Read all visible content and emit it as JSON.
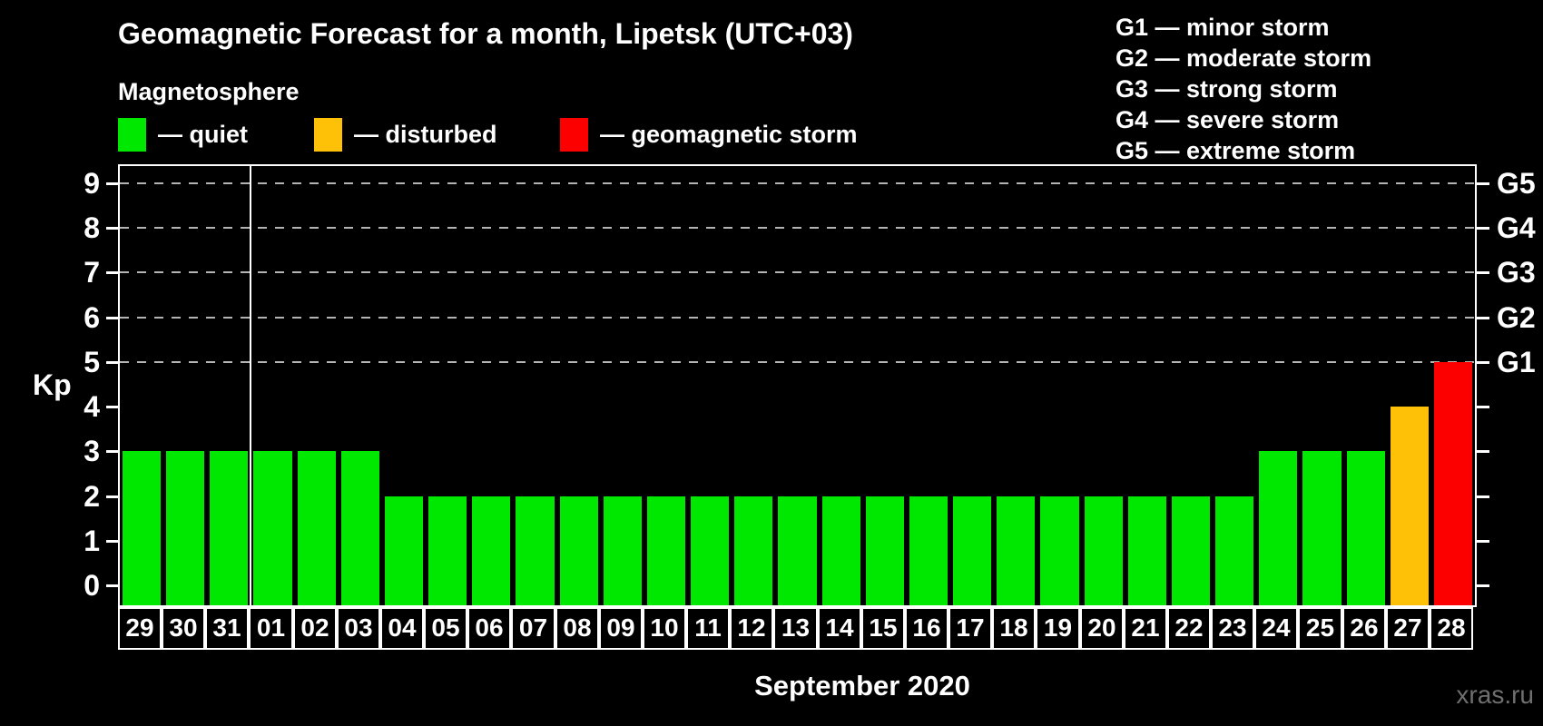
{
  "title": "Geomagnetic Forecast for a month, Lipetsk (UTC+03)",
  "subtitle": "Magnetosphere",
  "legend": {
    "items": [
      {
        "status": "quiet",
        "label": "— quiet",
        "color": "#00E800"
      },
      {
        "status": "disturbed",
        "label": "— disturbed",
        "color": "#FFC107"
      },
      {
        "status": "storm",
        "label": "— geomagnetic storm",
        "color": "#FC0000"
      }
    ]
  },
  "g_legend": [
    {
      "label": "G1 — minor storm"
    },
    {
      "label": "G2 — moderate storm"
    },
    {
      "label": "G3 — strong storm"
    },
    {
      "label": "G4 — severe storm"
    },
    {
      "label": "G5 — extreme storm"
    }
  ],
  "watermark": "xras.ru",
  "chart_data": {
    "type": "bar",
    "title": "Geomagnetic Forecast for a month, Lipetsk (UTC+03)",
    "xlabel": "September 2020",
    "ylabel": "Kp",
    "ylim": [
      0,
      9
    ],
    "yticks": [
      0,
      1,
      2,
      3,
      4,
      5,
      6,
      7,
      8,
      9
    ],
    "grid": "dashed horizontal lines at storm levels only",
    "gridline_levels": [
      5,
      6,
      7,
      8,
      9
    ],
    "right_axis_labels": [
      {
        "kp": 5,
        "label": "G1"
      },
      {
        "kp": 6,
        "label": "G2"
      },
      {
        "kp": 7,
        "label": "G3"
      },
      {
        "kp": 8,
        "label": "G4"
      },
      {
        "kp": 9,
        "label": "G5"
      }
    ],
    "month_separator_before_index": 3,
    "categories": [
      "29",
      "30",
      "31",
      "01",
      "02",
      "03",
      "04",
      "05",
      "06",
      "07",
      "08",
      "09",
      "10",
      "11",
      "12",
      "13",
      "14",
      "15",
      "16",
      "17",
      "18",
      "19",
      "20",
      "21",
      "22",
      "23",
      "24",
      "25",
      "26",
      "27",
      "28"
    ],
    "values": [
      3,
      3,
      3,
      3,
      3,
      3,
      2,
      2,
      2,
      2,
      2,
      2,
      2,
      2,
      2,
      2,
      2,
      2,
      2,
      2,
      2,
      2,
      2,
      2,
      2,
      2,
      3,
      3,
      3,
      4,
      5
    ],
    "statuses": [
      "quiet",
      "quiet",
      "quiet",
      "quiet",
      "quiet",
      "quiet",
      "quiet",
      "quiet",
      "quiet",
      "quiet",
      "quiet",
      "quiet",
      "quiet",
      "quiet",
      "quiet",
      "quiet",
      "quiet",
      "quiet",
      "quiet",
      "quiet",
      "quiet",
      "quiet",
      "quiet",
      "quiet",
      "quiet",
      "quiet",
      "quiet",
      "quiet",
      "quiet",
      "disturbed",
      "storm"
    ]
  }
}
